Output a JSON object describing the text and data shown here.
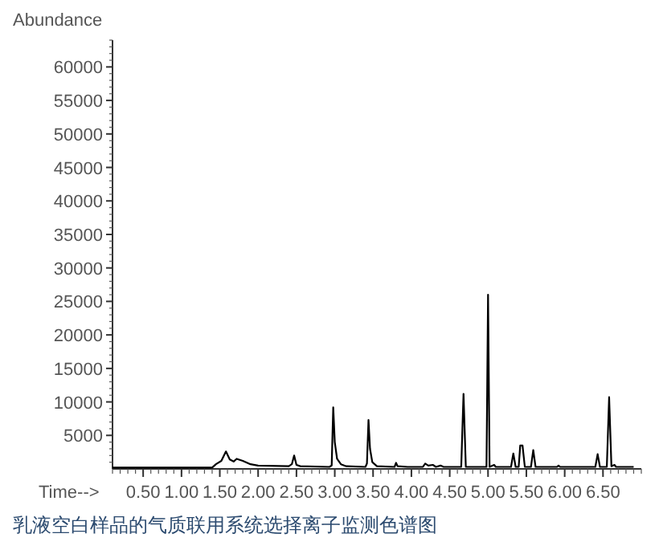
{
  "chart_data": {
    "type": "line",
    "ylabel": "Abundance",
    "xlabel": "Time-->",
    "annotations": [
      "乳液空白样品的气质联用系统选择离子监测色谱图"
    ],
    "xlim": [
      0.1,
      7.0
    ],
    "ylim": [
      0,
      64000
    ],
    "xticks": [
      {
        "value": 0.5,
        "label": "0.50"
      },
      {
        "value": 1.0,
        "label": "1.00"
      },
      {
        "value": 1.5,
        "label": "1.50"
      },
      {
        "value": 2.0,
        "label": "2.00"
      },
      {
        "value": 2.5,
        "label": "2.50"
      },
      {
        "value": 3.0,
        "label": "3.00"
      },
      {
        "value": 3.5,
        "label": "3.50"
      },
      {
        "value": 4.0,
        "label": "4.00"
      },
      {
        "value": 4.5,
        "label": "4.50"
      },
      {
        "value": 5.0,
        "label": "5.00"
      },
      {
        "value": 5.5,
        "label": "5.50"
      },
      {
        "value": 6.0,
        "label": "6.00"
      },
      {
        "value": 6.5,
        "label": "6.50"
      }
    ],
    "yticks": [
      5000,
      10000,
      15000,
      20000,
      25000,
      30000,
      35000,
      40000,
      45000,
      50000,
      55000,
      60000
    ],
    "grid": false,
    "marker": "none",
    "line_style": "solid",
    "series": [
      {
        "color": "#000000",
        "x": [
          0.1,
          1.4,
          1.45,
          1.52,
          1.58,
          1.63,
          1.68,
          1.72,
          1.8,
          1.9,
          2.0,
          2.4,
          2.44,
          2.47,
          2.5,
          2.55,
          2.93,
          2.96,
          2.98,
          3.0,
          3.03,
          3.08,
          3.15,
          3.4,
          3.42,
          3.44,
          3.46,
          3.49,
          3.55,
          3.78,
          3.8,
          3.82,
          3.95,
          4.15,
          4.18,
          4.22,
          4.28,
          4.32,
          4.38,
          4.42,
          4.65,
          4.68,
          4.71,
          4.98,
          5.0,
          5.02,
          5.08,
          5.1,
          5.3,
          5.33,
          5.36,
          5.4,
          5.42,
          5.45,
          5.48,
          5.56,
          5.59,
          5.62,
          5.9,
          5.92,
          5.94,
          6.4,
          6.43,
          6.46,
          6.55,
          6.58,
          6.61,
          6.65,
          6.67,
          6.9
        ],
        "values": [
          200,
          200,
          700,
          1200,
          2600,
          1400,
          1100,
          1500,
          1200,
          700,
          500,
          400,
          700,
          2000,
          600,
          400,
          300,
          500,
          9200,
          4000,
          1500,
          700,
          400,
          300,
          800,
          7300,
          3000,
          1000,
          400,
          300,
          900,
          400,
          300,
          300,
          800,
          500,
          600,
          300,
          500,
          300,
          300,
          11200,
          300,
          300,
          26000,
          300,
          600,
          300,
          300,
          2300,
          300,
          300,
          3500,
          3500,
          300,
          300,
          2800,
          300,
          300,
          500,
          300,
          300,
          2200,
          300,
          300,
          10700,
          400,
          600,
          300,
          300
        ]
      }
    ]
  }
}
